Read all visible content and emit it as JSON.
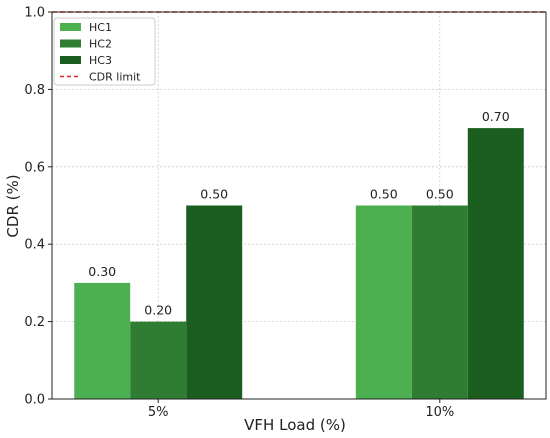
{
  "chart_data": {
    "type": "bar",
    "title": "",
    "xlabel": "VFH Load (%)",
    "ylabel": "CDR (%)",
    "categories": [
      "5%",
      "10%"
    ],
    "series": [
      {
        "name": "HC1",
        "values": [
          0.3,
          0.5
        ],
        "labels": [
          "0.30",
          "0.50"
        ],
        "color": "#4caf50"
      },
      {
        "name": "HC2",
        "values": [
          0.2,
          0.5
        ],
        "labels": [
          "0.20",
          "0.50"
        ],
        "color": "#2e7d32"
      },
      {
        "name": "HC3",
        "values": [
          0.5,
          0.7
        ],
        "labels": [
          "0.50",
          "0.70"
        ],
        "color": "#1b5e20"
      }
    ],
    "reference_line": {
      "name": "CDR limit",
      "value": 1.0,
      "color": "#d62728",
      "style": "dashed"
    },
    "ylim": [
      0.0,
      1.0
    ],
    "yticks": [
      0.0,
      0.2,
      0.4,
      0.6,
      0.8,
      1.0
    ],
    "ytick_labels": [
      "0.0",
      "0.2",
      "0.4",
      "0.6",
      "0.8",
      "1.0"
    ],
    "grid": true,
    "legend_position": "top-left"
  }
}
